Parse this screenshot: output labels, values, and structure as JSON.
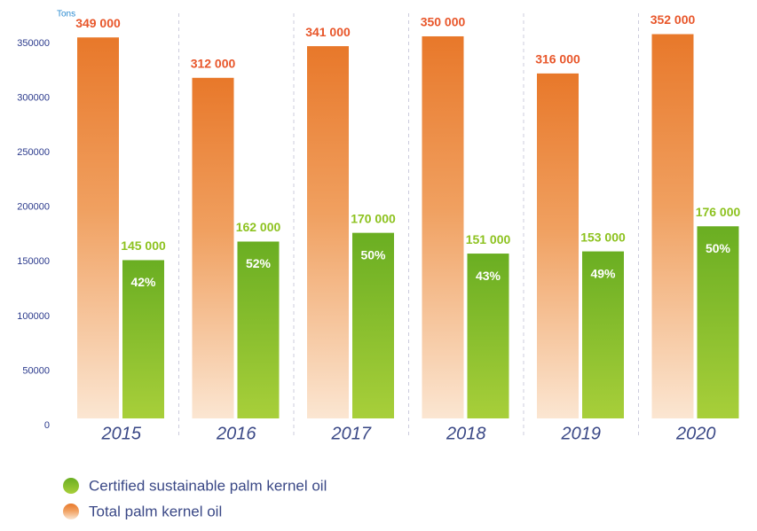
{
  "chart_data": {
    "type": "bar",
    "y_axis_label": "Tons",
    "categories": [
      "2015",
      "2016",
      "2017",
      "2018",
      "2019",
      "2020"
    ],
    "series": [
      {
        "name": "Total palm kernel oil",
        "color": "#e8782a",
        "values": [
          349000,
          312000,
          341000,
          350000,
          316000,
          352000
        ],
        "value_labels": [
          "349 000",
          "312 000",
          "341 000",
          "350 000",
          "316 000",
          "352 000"
        ]
      },
      {
        "name": "Certified sustainable palm kernel oil",
        "color": "#6aae22",
        "values": [
          145000,
          162000,
          170000,
          151000,
          153000,
          176000
        ],
        "value_labels": [
          "145 000",
          "162 000",
          "170 000",
          "151 000",
          "153 000",
          "176 000"
        ]
      }
    ],
    "annotations": [
      "42%",
      "52%",
      "50%",
      "43%",
      "49%",
      "50%"
    ],
    "ylim": [
      0,
      375000
    ],
    "yticks": [
      0,
      50000,
      100000,
      150000,
      200000,
      250000,
      300000,
      350000
    ],
    "grid": false,
    "legend": "bottom-left"
  }
}
